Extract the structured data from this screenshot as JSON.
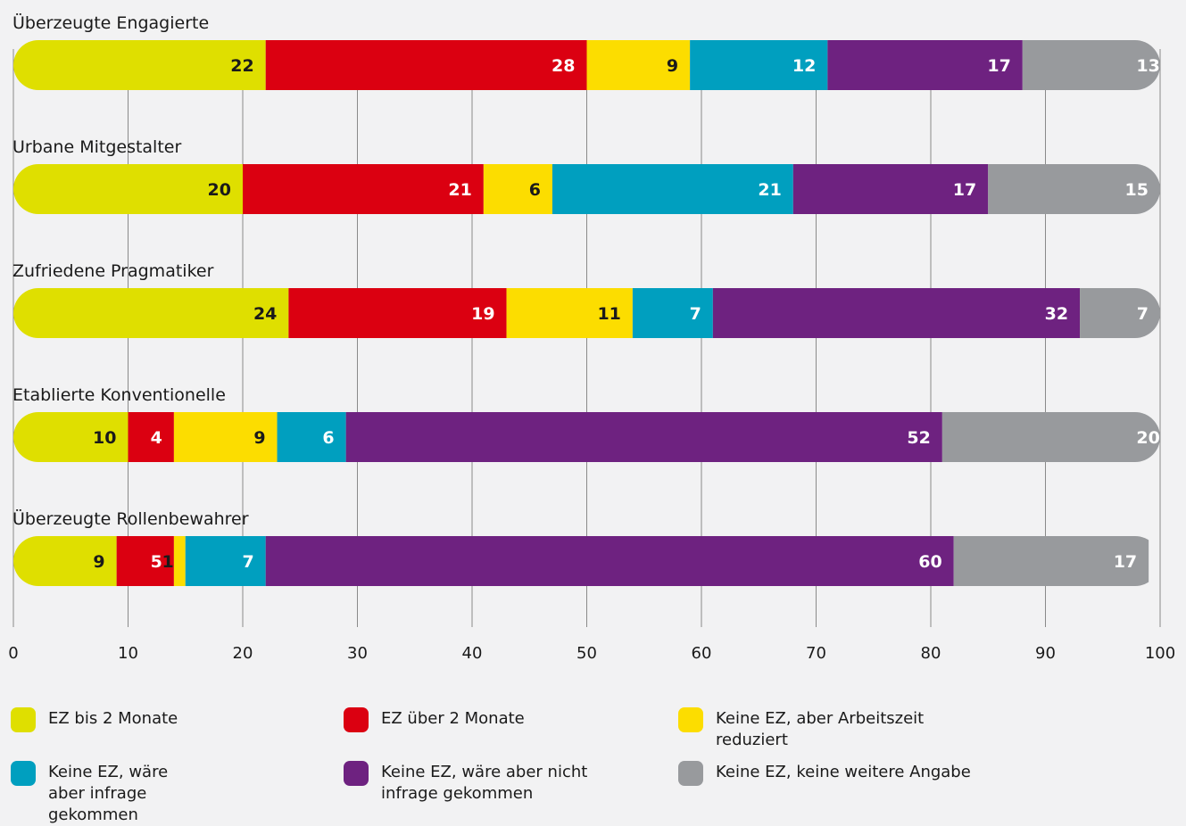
{
  "chart_data": {
    "type": "bar",
    "orientation": "horizontal",
    "stacked": true,
    "categories": [
      "Überzeugte Engagierte",
      "Urbane Mitgestalter",
      "Zufriedene Pragmatiker",
      "Etablierte Konventionelle",
      "Überzeugte Rollenbewahrer"
    ],
    "series": [
      {
        "name": "EZ bis 2 Monate",
        "color": "#dfdf00",
        "label_color": "#1a1a1a",
        "values": [
          22,
          20,
          24,
          10,
          9
        ]
      },
      {
        "name": "EZ über 2 Monate",
        "color": "#db0011",
        "label_color": "#ffffff",
        "values": [
          28,
          21,
          19,
          4,
          5
        ]
      },
      {
        "name": "Keine EZ, aber Arbeitszeit reduziert",
        "color": "#fcdd00",
        "label_color": "#1a1a1a",
        "values": [
          9,
          6,
          11,
          9,
          1
        ]
      },
      {
        "name": "Keine EZ, wäre aber infrage gekommen",
        "color": "#009fbf",
        "label_color": "#ffffff",
        "values": [
          12,
          21,
          7,
          6,
          7
        ]
      },
      {
        "name": "Keine EZ, wäre aber nicht infrage gekommen",
        "color": "#6e2280",
        "label_color": "#ffffff",
        "values": [
          17,
          17,
          32,
          52,
          60
        ]
      },
      {
        "name": "Keine EZ, keine weitere Angabe",
        "color": "#989a9d",
        "label_color": "#ffffff",
        "values": [
          13,
          15,
          7,
          20,
          17
        ]
      }
    ],
    "x_ticks": [
      0,
      10,
      20,
      30,
      40,
      50,
      60,
      70,
      80,
      90,
      100
    ],
    "xlim": [
      0,
      100
    ],
    "grid": true,
    "legend_position": "bottom"
  }
}
